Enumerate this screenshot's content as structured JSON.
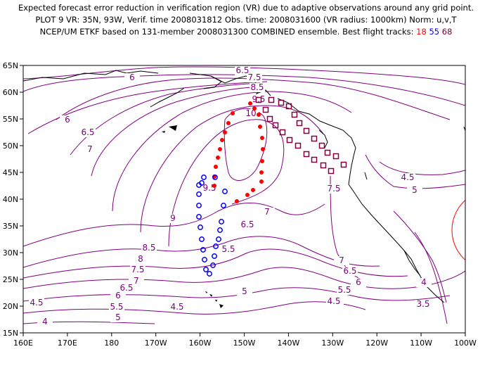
{
  "title": {
    "line1": "Expected forecast error reduction in verification region (VR) due to adaptive observations around any grid point.",
    "line2": "PLOT 9 VR: 35N, 93W, Verif. time 2008031812 Obs. time: 2008031600 (VR radius: 1000km) Norm: u,v,T",
    "line3": "NCEP/UM ETKF based on 131-member 2008031300 COMBINED ensemble.  Best flight tracks:",
    "tracks": [
      "18",
      "55",
      "68"
    ]
  },
  "colors": {
    "contour": "#800080",
    "track_18": "#ff0000",
    "track_55": "#0000ff",
    "track_68": "#800040",
    "vr_circle": "#ff0000",
    "coast": "#000000"
  },
  "axes": {
    "lon_labels": [
      "160E",
      "170E",
      "180",
      "170W",
      "160W",
      "150W",
      "140W",
      "130W",
      "120W",
      "110W",
      "100W"
    ],
    "lat_labels": [
      "65N",
      "60N",
      "55N",
      "50N",
      "45N",
      "40N",
      "35N",
      "30N",
      "25N",
      "20N",
      "15N"
    ]
  },
  "contour_labels": [
    "6.5",
    "7.5",
    "8.5",
    "9.5",
    "10",
    "6",
    "6",
    "6.5",
    "7",
    "9.5",
    "9",
    "8.5",
    "8",
    "7.5",
    "7",
    "6.5",
    "6",
    "5.5",
    "5",
    "4.5",
    "4",
    "4.5",
    "5.5",
    "6.5",
    "7",
    "5",
    "6.5",
    "6",
    "5.5",
    "5",
    "4.5",
    "4.5",
    "5",
    "4",
    "3.5",
    "7.5",
    "7"
  ]
}
